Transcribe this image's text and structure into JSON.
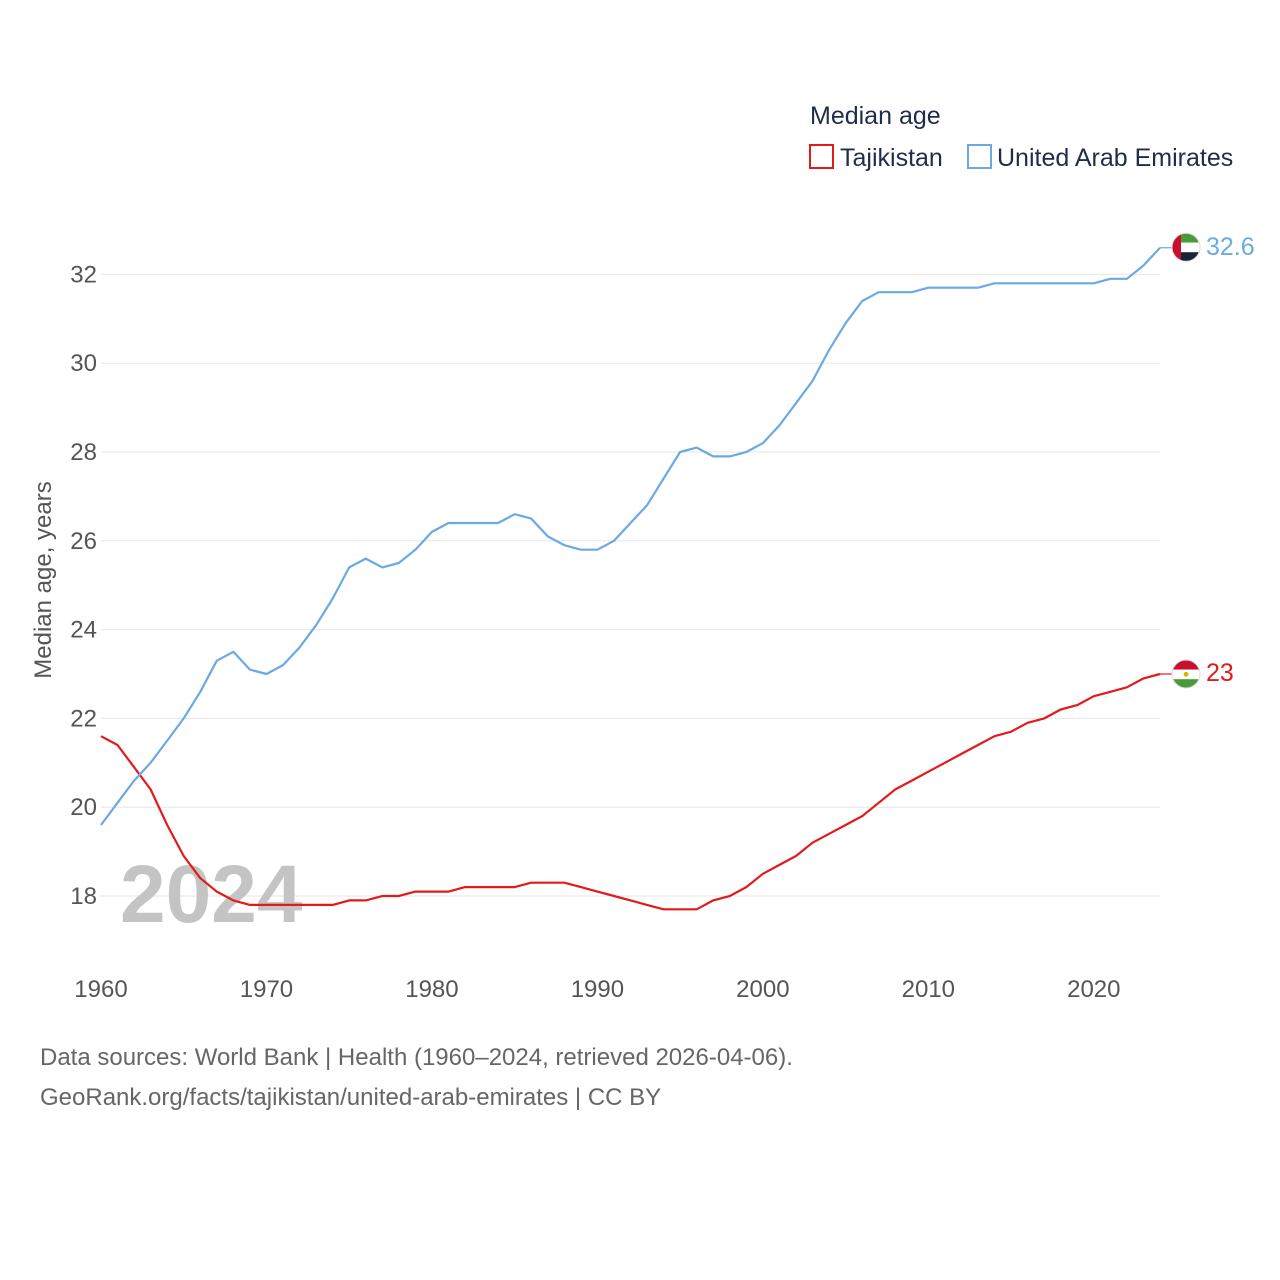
{
  "chart_data": {
    "type": "line",
    "legend_title": "Median age",
    "ylabel": "Median age, years",
    "xlabel": "",
    "xlim": [
      1960,
      2024
    ],
    "ylim": [
      17,
      32.6
    ],
    "x_ticks": [
      1960,
      1970,
      1980,
      1990,
      2000,
      2010,
      2020
    ],
    "y_ticks": [
      18,
      20,
      22,
      24,
      26,
      28,
      30,
      32
    ],
    "year_watermark": "2024",
    "x": [
      1960,
      1961,
      1962,
      1963,
      1964,
      1965,
      1966,
      1967,
      1968,
      1969,
      1970,
      1971,
      1972,
      1973,
      1974,
      1975,
      1976,
      1977,
      1978,
      1979,
      1980,
      1981,
      1982,
      1983,
      1984,
      1985,
      1986,
      1987,
      1988,
      1989,
      1990,
      1991,
      1992,
      1993,
      1994,
      1995,
      1996,
      1997,
      1998,
      1999,
      2000,
      2001,
      2002,
      2003,
      2004,
      2005,
      2006,
      2007,
      2008,
      2009,
      2010,
      2011,
      2012,
      2013,
      2014,
      2015,
      2016,
      2017,
      2018,
      2019,
      2020,
      2021,
      2022,
      2023,
      2024
    ],
    "series": [
      {
        "name": "Tajikistan",
        "color": "#e31a1c",
        "end_label": "23",
        "flag": "tajikistan-flag",
        "values": [
          21.6,
          21.4,
          20.9,
          20.4,
          19.6,
          18.9,
          18.4,
          18.1,
          17.9,
          17.8,
          17.8,
          17.8,
          17.8,
          17.8,
          17.8,
          17.9,
          17.9,
          18.0,
          18.0,
          18.1,
          18.1,
          18.1,
          18.2,
          18.2,
          18.2,
          18.2,
          18.3,
          18.3,
          18.3,
          18.2,
          18.1,
          18.0,
          17.9,
          17.8,
          17.7,
          17.7,
          17.7,
          17.9,
          18.0,
          18.2,
          18.5,
          18.7,
          18.9,
          19.2,
          19.4,
          19.6,
          19.8,
          20.1,
          20.4,
          20.6,
          20.8,
          21.0,
          21.2,
          21.4,
          21.6,
          21.7,
          21.9,
          22.0,
          22.2,
          22.3,
          22.5,
          22.6,
          22.7,
          22.9,
          23.0
        ]
      },
      {
        "name": "United Arab Emirates",
        "color": "#6ba9e3",
        "end_label": "32.6",
        "flag": "uae-flag",
        "values": [
          19.6,
          20.1,
          20.6,
          21.0,
          21.5,
          22.0,
          22.6,
          23.3,
          23.5,
          23.1,
          23.0,
          23.2,
          23.6,
          24.1,
          24.7,
          25.4,
          25.6,
          25.4,
          25.5,
          25.8,
          26.2,
          26.4,
          26.4,
          26.4,
          26.4,
          26.6,
          26.5,
          26.1,
          25.9,
          25.8,
          25.8,
          26.0,
          26.4,
          26.8,
          27.4,
          28.0,
          28.1,
          27.9,
          27.9,
          28.0,
          28.2,
          28.6,
          29.1,
          29.6,
          30.3,
          30.9,
          31.4,
          31.6,
          31.6,
          31.6,
          31.7,
          31.7,
          31.7,
          31.7,
          31.8,
          31.8,
          31.8,
          31.8,
          31.8,
          31.8,
          31.8,
          31.9,
          31.9,
          32.2,
          32.6
        ]
      }
    ]
  },
  "footer": {
    "line1": "Data sources: World Bank | Health (1960–2024, retrieved 2026-04-06).",
    "line2": "GeoRank.org/facts/tajikistan/united-arab-emirates | CC BY"
  }
}
